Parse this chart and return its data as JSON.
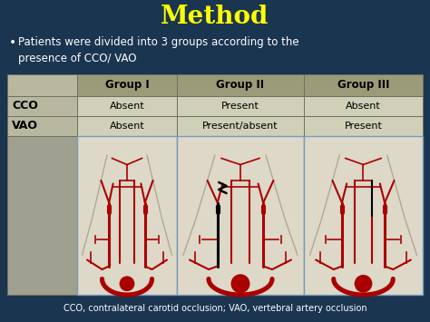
{
  "title": "Method",
  "title_color": "#FFFF00",
  "background_color": "#1a3550",
  "bullet_text": "Patients were divided into 3 groups according to the\npresence of CCO/ VAO",
  "bullet_color": "#FFFFFF",
  "table_header_bg": "#9B9B7A",
  "table_header_text": "#000000",
  "table_row_label_bg": "#B8B8A0",
  "table_cell_bg_light": "#D0D0B8",
  "row_labels": [
    "CCO",
    "VAO"
  ],
  "col_headers": [
    "Group I",
    "Group II",
    "Group III"
  ],
  "cell_data": [
    [
      "Absent",
      "Present",
      "Absent"
    ],
    [
      "Absent",
      "Present/absent",
      "Present"
    ]
  ],
  "footer_text": "CCO, contralateral carotid occlusion; VAO, vertebral artery occlusion",
  "footer_color": "#FFFFFF",
  "image_area_bg": "#DDD8C8",
  "image_border_color": "#7799BB",
  "artery_color": "#AA0000",
  "block_color": "#000000",
  "body_outline_color": "#C8C0A8",
  "table_border_color": "#707060"
}
